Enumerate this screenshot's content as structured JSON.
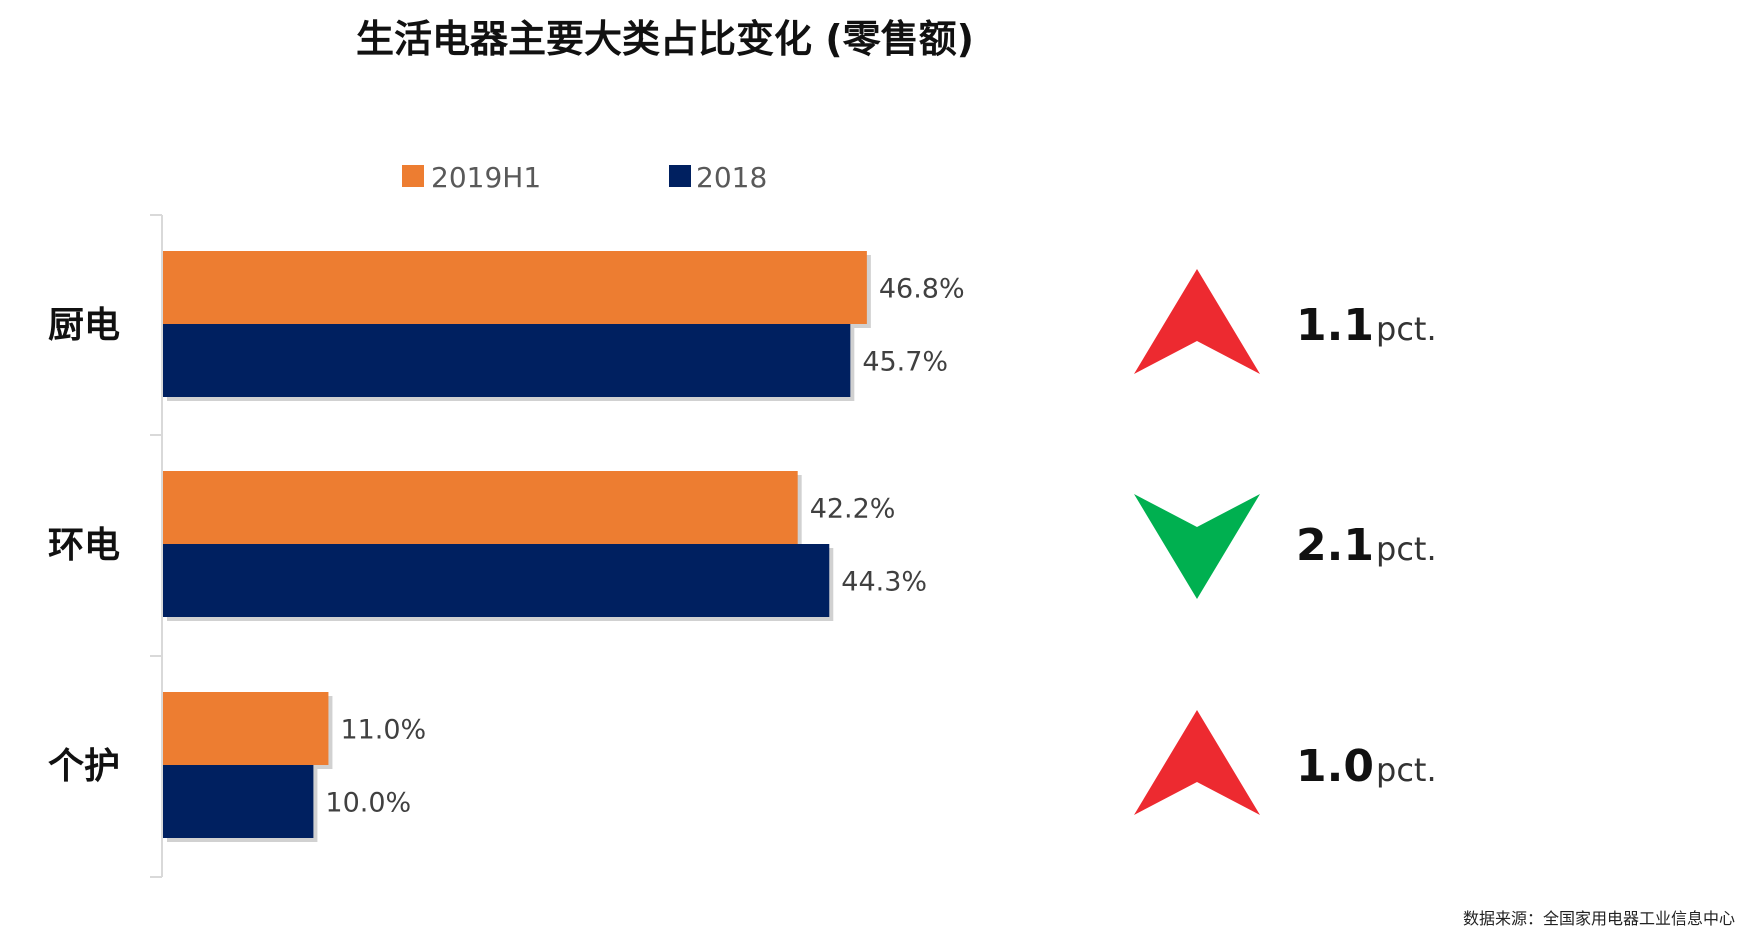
{
  "chart_data": {
    "type": "bar",
    "orientation": "horizontal",
    "title": "生活电器主要大类占比变化 (零售额)",
    "categories": [
      "厨电",
      "环电",
      "个护"
    ],
    "series": [
      {
        "name": "2019H1",
        "values": [
          46.8,
          42.2,
          11.0
        ],
        "labels": [
          "46.8%",
          "42.2%",
          "11.0%"
        ],
        "color": "#ED7D31"
      },
      {
        "name": "2018",
        "values": [
          45.7,
          44.3,
          10.0
        ],
        "labels": [
          "45.7%",
          "44.3%",
          "10.0%"
        ],
        "color": "#002060"
      }
    ],
    "value_unit": "%",
    "xlim": [
      0,
      50
    ],
    "legend_position": "top",
    "grid": false,
    "changes": [
      {
        "value": "1.1",
        "unit": "pct.",
        "direction": "up",
        "color": "#ED2A30"
      },
      {
        "value": "2.1",
        "unit": "pct.",
        "direction": "down",
        "color": "#00B050"
      },
      {
        "value": "1.0",
        "unit": "pct.",
        "direction": "up",
        "color": "#ED2A30"
      }
    ]
  },
  "source": "数据来源：全国家用电器工业信息中心"
}
